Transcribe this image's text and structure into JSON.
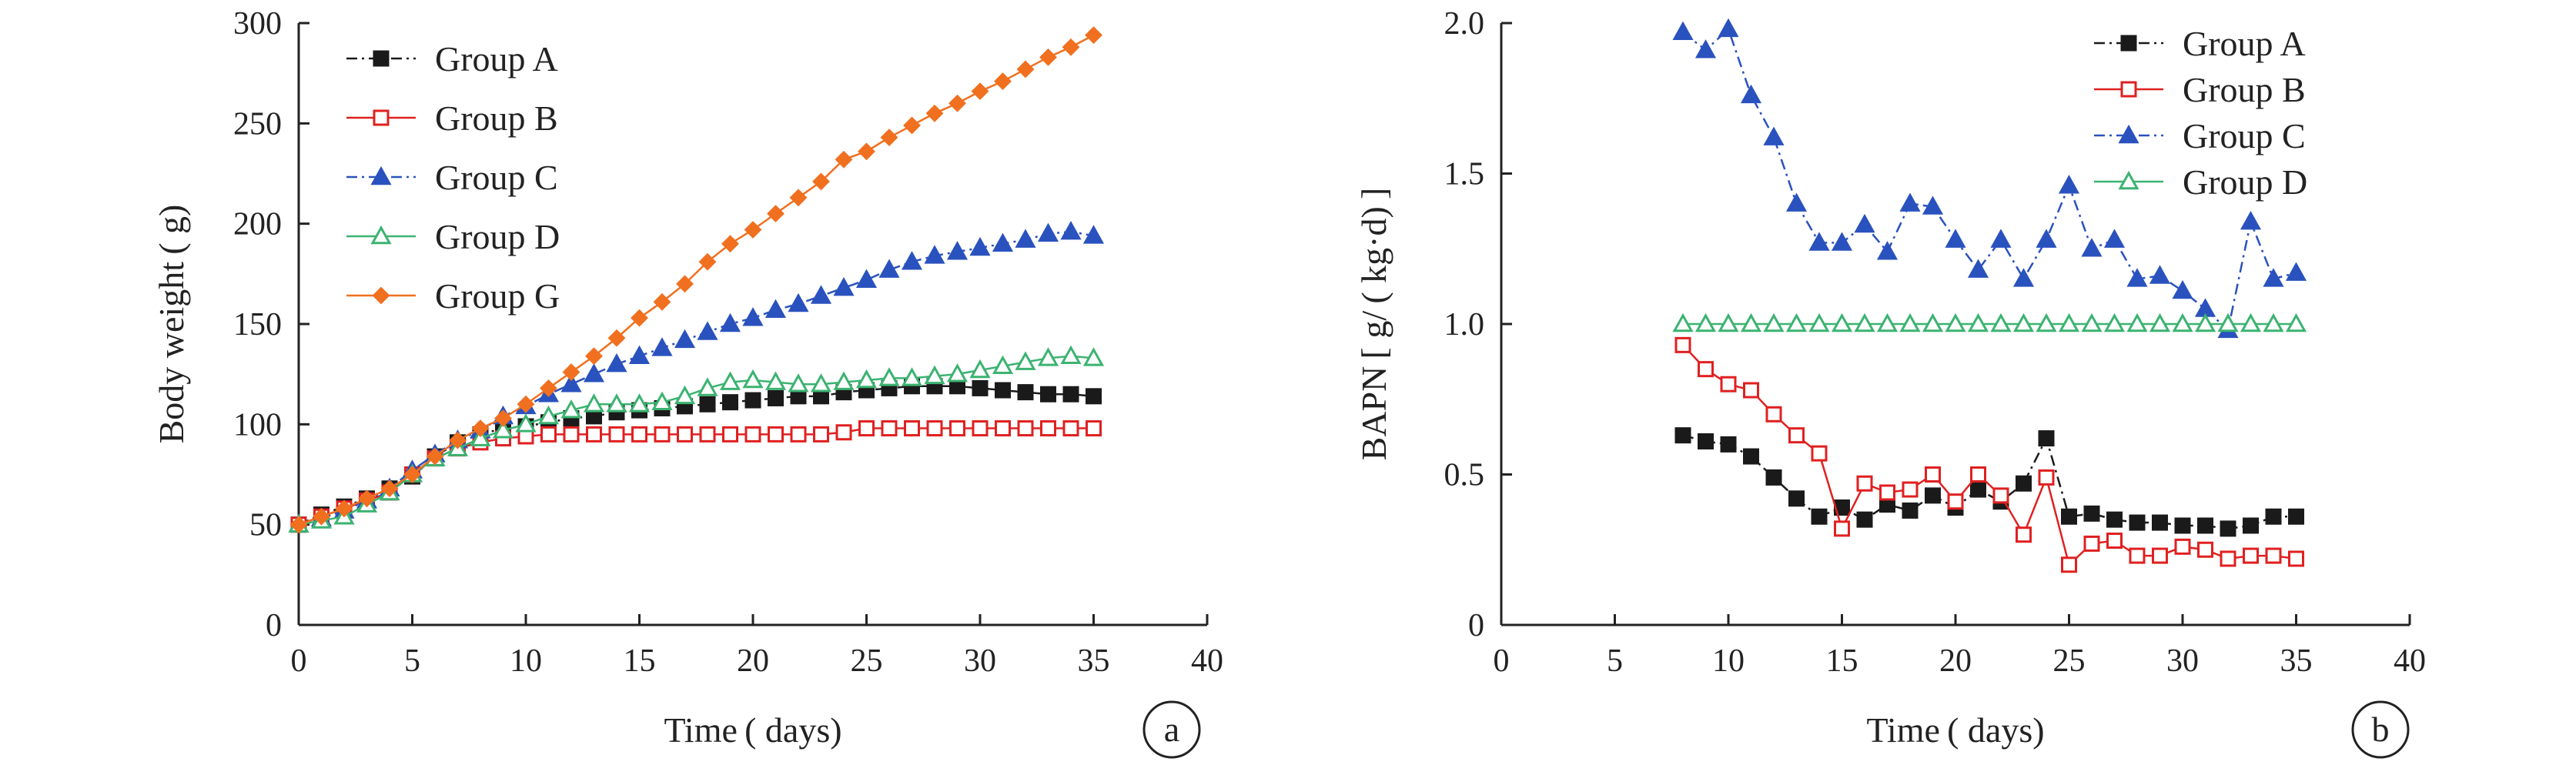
{
  "chart_data": [
    {
      "type": "line",
      "panel_label": "a",
      "xlabel": "Time ( days)",
      "ylabel": "Body weight ( g)",
      "xlim": [
        0,
        40
      ],
      "ylim": [
        0,
        300
      ],
      "xticks": [
        0,
        5,
        10,
        15,
        20,
        25,
        30,
        35,
        40
      ],
      "yticks": [
        0,
        50,
        100,
        150,
        200,
        250,
        300
      ],
      "legend_position": "top-left",
      "grid": false,
      "x": [
        0,
        1,
        2,
        3,
        4,
        5,
        6,
        7,
        8,
        9,
        10,
        11,
        12,
        13,
        14,
        15,
        16,
        17,
        18,
        19,
        20,
        21,
        22,
        23,
        24,
        25,
        26,
        27,
        28,
        29,
        30,
        31,
        32,
        33,
        34,
        35
      ],
      "series": [
        {
          "name": "Group A",
          "color": "#1a1a1a",
          "marker": "square",
          "line": "dashdot",
          "values": [
            50,
            55,
            59,
            63,
            68,
            74,
            84,
            91,
            95,
            98,
            99,
            101,
            103,
            104,
            106,
            107,
            108,
            109,
            110,
            111,
            112,
            113,
            114,
            114,
            116,
            117,
            118,
            119,
            119,
            119,
            118,
            117,
            116,
            115,
            115,
            114
          ]
        },
        {
          "name": "Group B",
          "color": "#e02020",
          "marker": "square-open",
          "line": "solid",
          "values": [
            50,
            54,
            58,
            62,
            66,
            75,
            83,
            88,
            91,
            93,
            94,
            95,
            95,
            95,
            95,
            95,
            95,
            95,
            95,
            95,
            95,
            95,
            95,
            95,
            96,
            98,
            98,
            98,
            98,
            98,
            98,
            98,
            98,
            98,
            98,
            98
          ]
        },
        {
          "name": "Group C",
          "color": "#2a52be",
          "marker": "triangle",
          "line": "dashdot",
          "values": [
            50,
            53,
            57,
            62,
            68,
            77,
            85,
            92,
            97,
            104,
            109,
            115,
            120,
            125,
            130,
            134,
            138,
            142,
            146,
            150,
            153,
            157,
            160,
            164,
            168,
            172,
            177,
            181,
            184,
            186,
            188,
            190,
            192,
            195,
            196,
            194
          ]
        },
        {
          "name": "Group D",
          "color": "#3cb371",
          "marker": "triangle-open",
          "line": "solid",
          "values": [
            50,
            52,
            54,
            60,
            66,
            75,
            83,
            88,
            93,
            97,
            100,
            104,
            107,
            110,
            110,
            110,
            111,
            114,
            118,
            121,
            122,
            121,
            120,
            120,
            121,
            122,
            123,
            123,
            124,
            125,
            127,
            129,
            131,
            133,
            134,
            133
          ]
        },
        {
          "name": "Group G",
          "color": "#f07020",
          "marker": "diamond",
          "line": "solid",
          "values": [
            50,
            54,
            58,
            63,
            68,
            75,
            84,
            92,
            98,
            103,
            110,
            118,
            126,
            134,
            143,
            153,
            161,
            170,
            181,
            190,
            197,
            205,
            213,
            221,
            232,
            236,
            243,
            249,
            255,
            260,
            266,
            271,
            277,
            283,
            288,
            294
          ]
        }
      ]
    },
    {
      "type": "line",
      "panel_label": "b",
      "xlabel": "Time ( days)",
      "ylabel": "BAPN [ g/ ( kg·d) ]",
      "xlim": [
        0,
        40
      ],
      "ylim": [
        0,
        2.0
      ],
      "xticks": [
        0,
        5,
        10,
        15,
        20,
        25,
        30,
        35,
        40
      ],
      "yticks": [
        0,
        0.5,
        1.0,
        1.5,
        2.0
      ],
      "ytick_labels": [
        "0",
        "0.5",
        "1.0",
        "1.5",
        "2.0"
      ],
      "legend_position": "top-right",
      "grid": false,
      "x": [
        8,
        9,
        10,
        11,
        12,
        13,
        14,
        15,
        16,
        17,
        18,
        19,
        20,
        21,
        22,
        23,
        24,
        25,
        26,
        27,
        28,
        29,
        30,
        31,
        32,
        33,
        34,
        35
      ],
      "series": [
        {
          "name": "Group A",
          "color": "#1a1a1a",
          "marker": "square",
          "line": "dashdot",
          "values": [
            0.63,
            0.61,
            0.6,
            0.56,
            0.49,
            0.42,
            0.36,
            0.39,
            0.35,
            0.4,
            0.38,
            0.43,
            0.39,
            0.45,
            0.41,
            0.47,
            0.62,
            0.36,
            0.37,
            0.35,
            0.34,
            0.34,
            0.33,
            0.33,
            0.32,
            0.33,
            0.36,
            0.36
          ]
        },
        {
          "name": "Group B",
          "color": "#e02020",
          "marker": "square-open",
          "line": "solid",
          "values": [
            0.93,
            0.85,
            0.8,
            0.78,
            0.7,
            0.63,
            0.57,
            0.32,
            0.47,
            0.44,
            0.45,
            0.5,
            0.41,
            0.5,
            0.43,
            0.3,
            0.49,
            0.2,
            0.27,
            0.28,
            0.23,
            0.23,
            0.26,
            0.25,
            0.22,
            0.23,
            0.23,
            0.22
          ]
        },
        {
          "name": "Group C",
          "color": "#2a52be",
          "marker": "triangle",
          "line": "dashdot",
          "values": [
            1.97,
            1.91,
            1.98,
            1.76,
            1.62,
            1.4,
            1.27,
            1.27,
            1.33,
            1.24,
            1.4,
            1.39,
            1.28,
            1.18,
            1.28,
            1.15,
            1.28,
            1.46,
            1.25,
            1.28,
            1.15,
            1.16,
            1.11,
            1.05,
            0.98,
            1.34,
            1.15,
            1.17
          ]
        },
        {
          "name": "Group D",
          "color": "#3cb371",
          "marker": "triangle-open",
          "line": "solid",
          "values": [
            1.0,
            1.0,
            1.0,
            1.0,
            1.0,
            1.0,
            1.0,
            1.0,
            1.0,
            1.0,
            1.0,
            1.0,
            1.0,
            1.0,
            1.0,
            1.0,
            1.0,
            1.0,
            1.0,
            1.0,
            1.0,
            1.0,
            1.0,
            1.0,
            1.0,
            1.0,
            1.0,
            1.0
          ]
        }
      ]
    }
  ]
}
